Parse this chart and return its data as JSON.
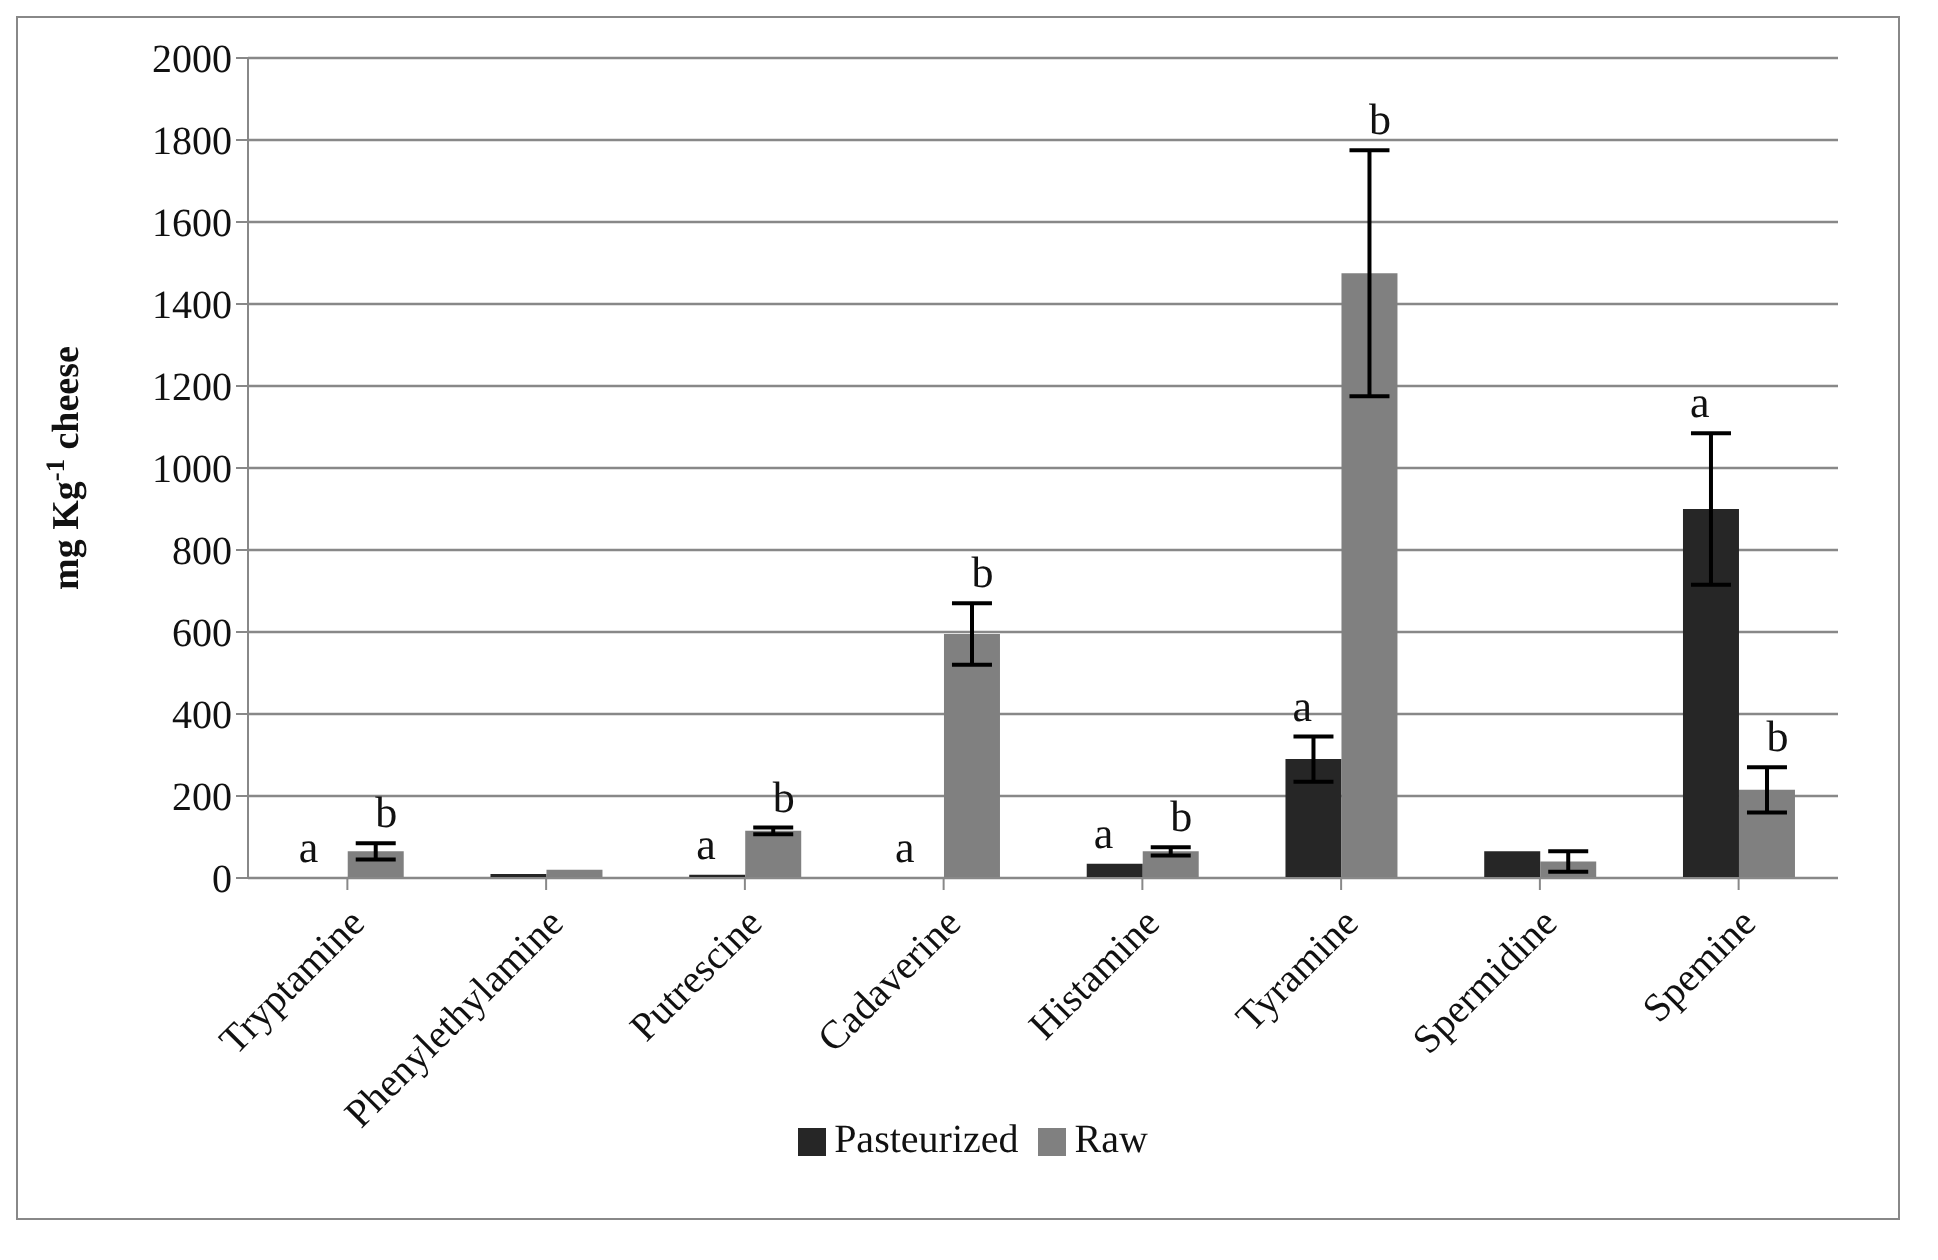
{
  "chart_data": {
    "type": "bar",
    "ylabel": "mg Kg$^{-1}$ cheese",
    "categories": [
      "Tryptamine",
      "Phenylethylamine",
      "Putrescine",
      "Cadaverine",
      "Histamine",
      "Tyramine",
      "Spermidine",
      "Spemine"
    ],
    "series": [
      {
        "name": "Pasteurized",
        "color": "#262626",
        "values": [
          0,
          10,
          8,
          0,
          35,
          290,
          65,
          900
        ],
        "errors": [
          null,
          null,
          null,
          null,
          null,
          55,
          null,
          185
        ],
        "value_labels": [
          "a",
          null,
          "a",
          "a",
          "a",
          "a",
          null,
          "a"
        ]
      },
      {
        "name": "Raw",
        "color": "#808080",
        "values": [
          65,
          20,
          115,
          595,
          65,
          1475,
          40,
          215
        ],
        "errors": [
          20,
          null,
          8,
          75,
          10,
          300,
          25,
          55
        ],
        "value_labels": [
          "b",
          null,
          "b",
          "b",
          "b",
          "b",
          null,
          "b"
        ]
      }
    ],
    "ylim": [
      0,
      2000
    ],
    "yticks": [
      0,
      200,
      400,
      600,
      800,
      1000,
      1200,
      1400,
      1600,
      1800,
      2000
    ],
    "grid": "y",
    "legend": "bottom"
  }
}
